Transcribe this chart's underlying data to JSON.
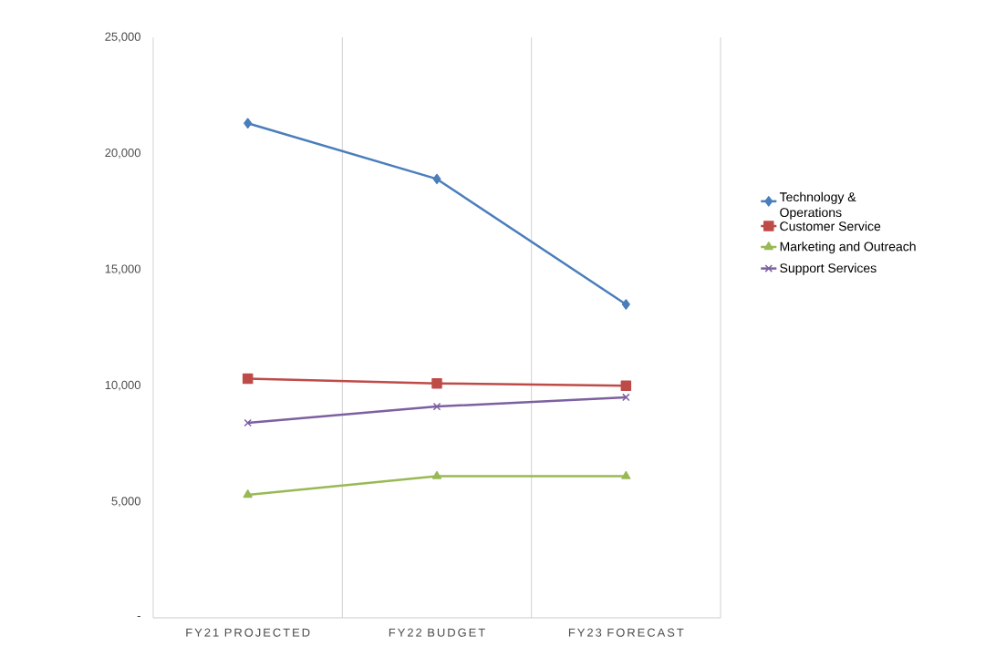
{
  "chart_data": {
    "type": "line",
    "categories": [
      "FY21 PROJECTED",
      "FY22 BUDGET",
      "FY23 FORECAST"
    ],
    "series": [
      {
        "name": "Technology & Operations",
        "color": "#4a7ebb",
        "marker": "diamond",
        "values": [
          21300,
          18900,
          13500
        ]
      },
      {
        "name": "Customer Service",
        "color": "#be4b48",
        "marker": "square",
        "values": [
          10300,
          10100,
          10000
        ]
      },
      {
        "name": "Marketing and Outreach",
        "color": "#98b954",
        "marker": "triangle",
        "values": [
          5300,
          6100,
          6100
        ]
      },
      {
        "name": "Support Services",
        "color": "#7d60a0",
        "marker": "cross",
        "values": [
          8400,
          9100,
          9500
        ]
      }
    ],
    "ylim": [
      0,
      25000
    ],
    "yticks": [
      {
        "value": 0,
        "label": "-"
      },
      {
        "value": 5000,
        "label": "5,000"
      },
      {
        "value": 10000,
        "label": "10,000"
      },
      {
        "value": 15000,
        "label": "15,000"
      },
      {
        "value": 20000,
        "label": "20,000"
      },
      {
        "value": 25000,
        "label": "25,000"
      }
    ],
    "grid": "x",
    "legend": "right",
    "line_style": "solid"
  }
}
